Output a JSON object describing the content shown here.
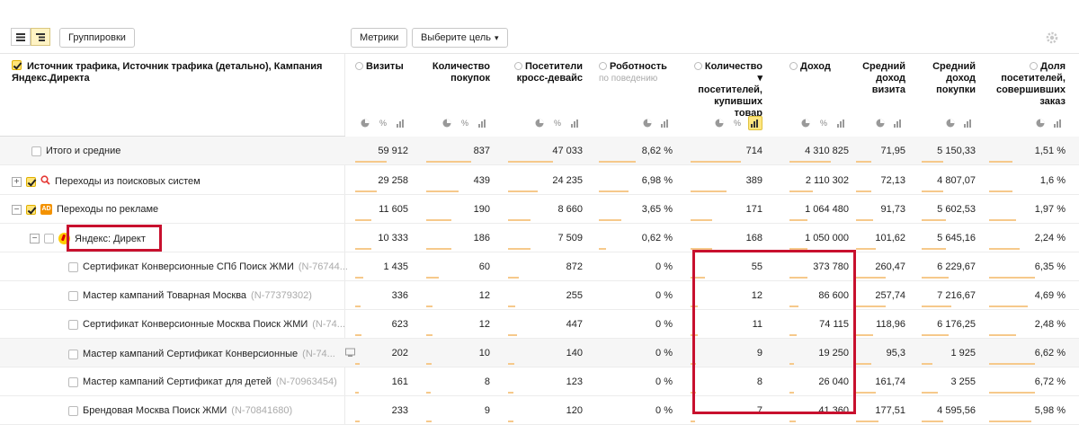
{
  "toolbar": {
    "groupings_label": "Группировки",
    "metrics_label": "Метрики",
    "goal_label": "Выберите цель"
  },
  "dims_header": "Источник трафика, Источник трафика (детально), Кампания Яндекс.Директа",
  "columns": [
    {
      "title": "Визиты",
      "sub": "",
      "info": true
    },
    {
      "title": "Количество покупок",
      "sub": "",
      "info": false
    },
    {
      "title": "Посетители кросс-девайс",
      "sub": "",
      "info": true
    },
    {
      "title": "Роботность",
      "sub": "по поведению",
      "info": true
    },
    {
      "title": "Количество ▾ посетителей, купивших товар",
      "sub": "",
      "info": true
    },
    {
      "title": "Доход",
      "sub": "",
      "info": true
    },
    {
      "title": "Средний доход визита",
      "sub": "",
      "info": false
    },
    {
      "title": "Средний доход покупки",
      "sub": "",
      "info": false
    },
    {
      "title": "Доля посетителей, совершивших заказ",
      "sub": "",
      "info": true
    }
  ],
  "rows": [
    {
      "name": "Итого и средние",
      "code": "",
      "values": [
        "59 912",
        "837",
        "47 033",
        "8,62 %",
        "714",
        "4 310 825",
        "71,95",
        "5 150,33",
        "1,51 %"
      ]
    },
    {
      "name": "Переходы из поисковых систем",
      "code": "",
      "values": [
        "29 258",
        "439",
        "24 235",
        "6,98 %",
        "389",
        "2 110 302",
        "72,13",
        "4 807,07",
        "1,6 %"
      ]
    },
    {
      "name": "Переходы по рекламе",
      "code": "",
      "values": [
        "11 605",
        "190",
        "8 660",
        "3,65 %",
        "171",
        "1 064 480",
        "91,73",
        "5 602,53",
        "1,97 %"
      ]
    },
    {
      "name": "Яндекс: Директ",
      "code": "",
      "values": [
        "10 333",
        "186",
        "7 509",
        "0,62 %",
        "168",
        "1 050 000",
        "101,62",
        "5 645,16",
        "2,24 %"
      ]
    },
    {
      "name": "Сертификат Конверсионные СПб Поиск ЖМИ",
      "code": "(N-76744...",
      "values": [
        "1 435",
        "60",
        "872",
        "0 %",
        "55",
        "373 780",
        "260,47",
        "6 229,67",
        "6,35 %"
      ]
    },
    {
      "name": "Мастер кампаний Товарная Москва",
      "code": "(N-77379302)",
      "values": [
        "336",
        "12",
        "255",
        "0 %",
        "12",
        "86 600",
        "257,74",
        "7 216,67",
        "4,69 %"
      ]
    },
    {
      "name": "Сертификат Конверсионные Москва Поиск ЖМИ",
      "code": "(N-74...",
      "values": [
        "623",
        "12",
        "447",
        "0 %",
        "11",
        "74 115",
        "118,96",
        "6 176,25",
        "2,48 %"
      ]
    },
    {
      "name": "Мастер кампаний Сертификат Конверсионные",
      "code": "(N-74...",
      "values": [
        "202",
        "10",
        "140",
        "0 %",
        "9",
        "19 250",
        "95,3",
        "1 925",
        "6,62 %"
      ]
    },
    {
      "name": "Мастер кампаний Сертификат для детей",
      "code": "(N-70963454)",
      "values": [
        "161",
        "8",
        "123",
        "0 %",
        "8",
        "26 040",
        "161,74",
        "3 255",
        "6,72 %"
      ]
    },
    {
      "name": "Брендовая Москва Поиск ЖМИ",
      "code": "(N-70841680)",
      "values": [
        "233",
        "9",
        "120",
        "0 %",
        "7",
        "41 360",
        "177,51",
        "4 595,56",
        "5,98 %"
      ]
    }
  ],
  "icons": {
    "pie": "pie-chart-icon",
    "percent": "percent-icon",
    "bars": "bar-chart-icon",
    "gear": "gear-icon"
  },
  "colors": {
    "highlight": "#c8102e",
    "accent": "#ffe680",
    "bar": "#f6c98b"
  }
}
